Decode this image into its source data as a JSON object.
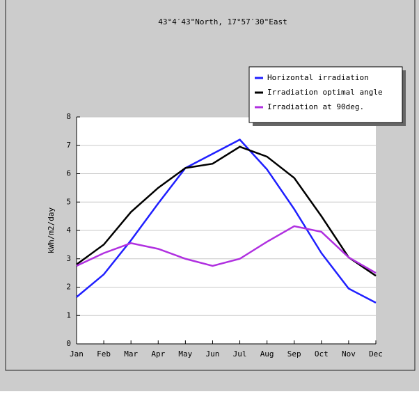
{
  "chart_data": {
    "type": "line",
    "title": "43°4′43\"North, 17°57′30\"East",
    "y_label": "kWh/m2/day",
    "categories": [
      "Jan",
      "Feb",
      "Mar",
      "Apr",
      "May",
      "Jun",
      "Jul",
      "Aug",
      "Sep",
      "Oct",
      "Nov",
      "Dec"
    ],
    "series": [
      {
        "name": "Horizontal irradiation",
        "color": "#1f1fff",
        "values": [
          1.65,
          2.45,
          3.65,
          4.95,
          6.2,
          6.7,
          7.2,
          6.15,
          4.75,
          3.2,
          1.95,
          1.45
        ]
      },
      {
        "name": "Irradiation optimal angle",
        "color": "#000000",
        "values": [
          2.8,
          3.5,
          4.65,
          5.5,
          6.2,
          6.35,
          6.95,
          6.6,
          5.85,
          4.5,
          3.05,
          2.4
        ]
      },
      {
        "name": "Irradiation at 90deg.",
        "color": "#b030e0",
        "values": [
          2.75,
          3.2,
          3.55,
          3.35,
          3.0,
          2.75,
          3.0,
          3.6,
          4.15,
          3.95,
          3.05,
          2.5
        ]
      }
    ],
    "ylim": [
      0,
      8
    ],
    "yticks": [
      0,
      1,
      2,
      3,
      4,
      5,
      6,
      7,
      8
    ],
    "grid": true,
    "legend": "top-right"
  }
}
